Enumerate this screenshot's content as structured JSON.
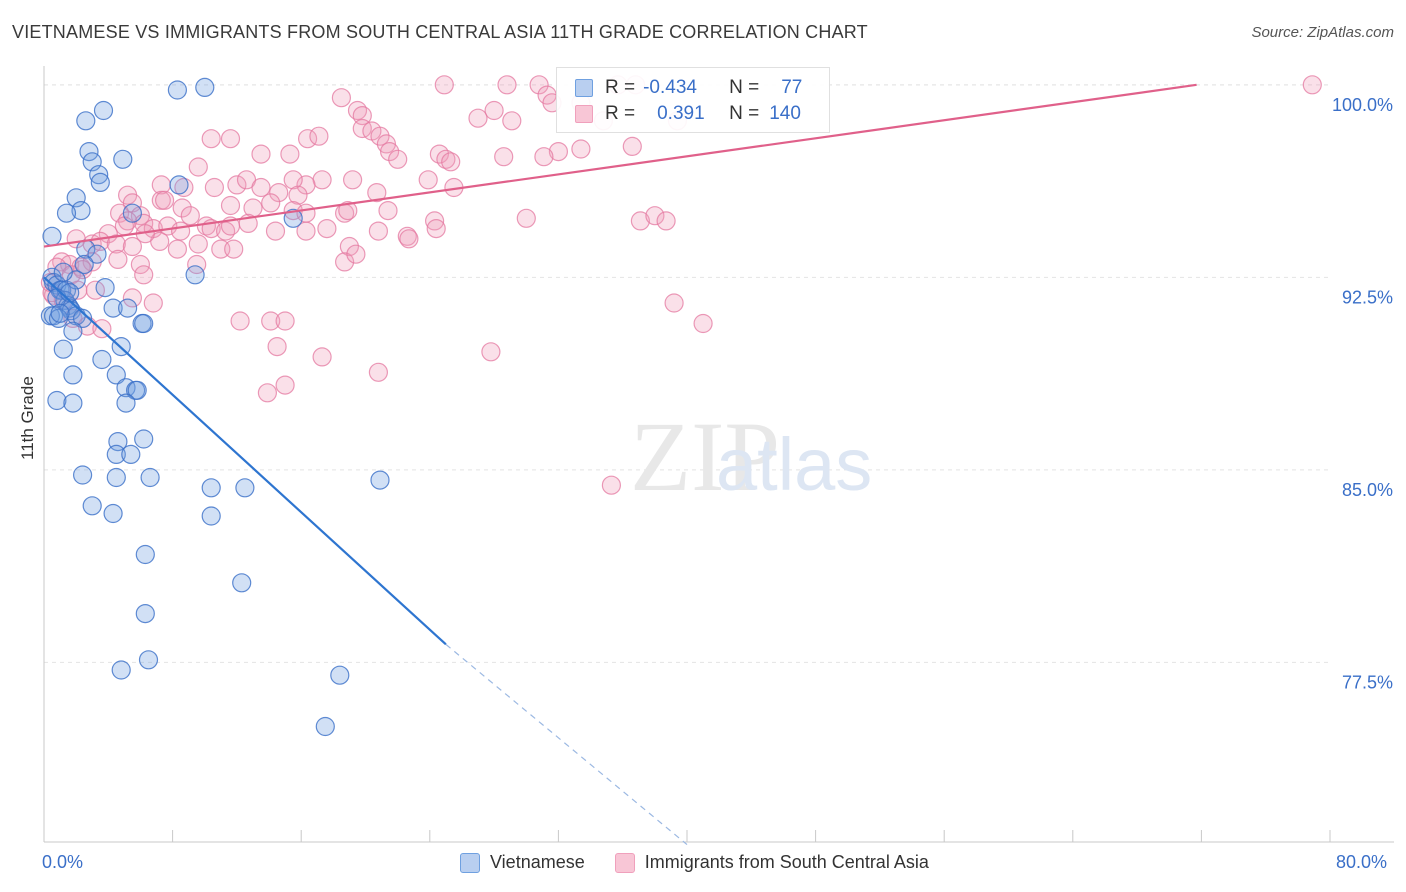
{
  "title": "VIETNAMESE VS IMMIGRANTS FROM SOUTH CENTRAL ASIA 11TH GRADE CORRELATION CHART",
  "source": "Source: ZipAtlas.com",
  "watermark": {
    "zip": "ZIP",
    "atlas": "atlas"
  },
  "legend": {
    "rows": [
      {
        "r_label": "R =",
        "r_value": "-0.434",
        "n_label": "N =",
        "n_value": "77"
      },
      {
        "r_label": "R =",
        "r_value": "0.391",
        "n_label": "N =",
        "n_value": "140"
      }
    ]
  },
  "bottom_legend": [
    "Vietnamese",
    "Immigrants from South Central Asia"
  ],
  "chart_data": {
    "type": "scatter",
    "title": "VIETNAMESE VS IMMIGRANTS FROM SOUTH CENTRAL ASIA 11TH GRADE CORRELATION CHART",
    "xlabel": "",
    "ylabel": "11th Grade",
    "xlim": [
      0,
      80
    ],
    "ylim": [
      70.5,
      100.5
    ],
    "x_tick_labels": [
      "0.0%",
      "80.0%"
    ],
    "y_ticks": [
      77.5,
      85.0,
      92.5,
      100.0
    ],
    "y_tick_labels": [
      "77.5%",
      "85.0%",
      "92.5%",
      "100.0%"
    ],
    "grid": true,
    "colors": {
      "vietnamese": "#6fa0e0",
      "south_central_asia": "#f0a0bc",
      "blue_line": "#2e75d0",
      "pink_line": "#e0608a"
    },
    "series": [
      {
        "name": "Vietnamese",
        "color": "#6fa0e0",
        "trend": {
          "x": [
            0,
            25,
            40
          ],
          "y": [
            92.5,
            78.2,
            70.4
          ]
        },
        "points": [
          [
            8.3,
            99.8
          ],
          [
            10.0,
            99.9
          ],
          [
            3.7,
            99.0
          ],
          [
            2.8,
            97.4
          ],
          [
            2.6,
            98.6
          ],
          [
            4.9,
            97.1
          ],
          [
            3.0,
            97.0
          ],
          [
            3.4,
            96.5
          ],
          [
            3.5,
            96.2
          ],
          [
            8.4,
            96.1
          ],
          [
            2.0,
            95.6
          ],
          [
            2.3,
            95.1
          ],
          [
            1.4,
            95.0
          ],
          [
            5.5,
            95.0
          ],
          [
            15.5,
            94.8
          ],
          [
            0.5,
            94.1
          ],
          [
            2.6,
            93.6
          ],
          [
            3.3,
            93.4
          ],
          [
            2.5,
            93.0
          ],
          [
            0.5,
            92.5
          ],
          [
            0.6,
            92.3
          ],
          [
            0.8,
            92.2
          ],
          [
            1.0,
            92.0
          ],
          [
            1.1,
            92.0
          ],
          [
            1.4,
            92.0
          ],
          [
            1.3,
            91.6
          ],
          [
            1.5,
            91.4
          ],
          [
            1.6,
            91.3
          ],
          [
            1.7,
            91.2
          ],
          [
            0.4,
            91.0
          ],
          [
            0.6,
            91.0
          ],
          [
            0.9,
            90.9
          ],
          [
            2.0,
            91.0
          ],
          [
            2.4,
            90.9
          ],
          [
            4.3,
            91.3
          ],
          [
            5.2,
            91.3
          ],
          [
            6.1,
            90.7
          ],
          [
            6.2,
            90.7
          ],
          [
            1.8,
            90.4
          ],
          [
            4.8,
            89.8
          ],
          [
            1.2,
            89.7
          ],
          [
            3.6,
            89.3
          ],
          [
            9.4,
            92.6
          ],
          [
            1.8,
            88.7
          ],
          [
            4.5,
            88.7
          ],
          [
            5.1,
            88.2
          ],
          [
            5.7,
            88.1
          ],
          [
            5.8,
            88.1
          ],
          [
            0.8,
            87.7
          ],
          [
            1.8,
            87.6
          ],
          [
            5.1,
            87.6
          ],
          [
            4.6,
            86.1
          ],
          [
            6.2,
            86.2
          ],
          [
            4.5,
            85.6
          ],
          [
            5.4,
            85.6
          ],
          [
            2.4,
            84.8
          ],
          [
            4.5,
            84.7
          ],
          [
            6.6,
            84.7
          ],
          [
            10.4,
            84.3
          ],
          [
            12.5,
            84.3
          ],
          [
            20.9,
            84.6
          ],
          [
            3.0,
            83.6
          ],
          [
            4.3,
            83.3
          ],
          [
            10.4,
            83.2
          ],
          [
            6.3,
            81.7
          ],
          [
            12.3,
            80.6
          ],
          [
            6.3,
            79.4
          ],
          [
            4.8,
            77.2
          ],
          [
            6.5,
            77.6
          ],
          [
            18.4,
            77.0
          ],
          [
            17.5,
            75.0
          ],
          [
            2.0,
            92.4
          ],
          [
            1.2,
            92.7
          ],
          [
            0.8,
            91.7
          ],
          [
            1.6,
            91.9
          ],
          [
            1.0,
            91.1
          ],
          [
            3.8,
            92.1
          ]
        ]
      },
      {
        "name": "Immigrants from South Central Asia",
        "color": "#f0a0bc",
        "trend": {
          "x": [
            0,
            71.7
          ],
          "y": [
            93.7,
            100.0
          ]
        },
        "points": [
          [
            24.9,
            100.0
          ],
          [
            28.8,
            100.0
          ],
          [
            30.8,
            100.0
          ],
          [
            31.3,
            99.6
          ],
          [
            31.6,
            99.3
          ],
          [
            33.4,
            99.3
          ],
          [
            35.7,
            100.0
          ],
          [
            36.8,
            100.0
          ],
          [
            78.9,
            100.0
          ],
          [
            18.5,
            99.5
          ],
          [
            19.5,
            99.0
          ],
          [
            19.8,
            98.8
          ],
          [
            27.0,
            98.7
          ],
          [
            28.0,
            99.0
          ],
          [
            29.1,
            98.6
          ],
          [
            34.8,
            98.6
          ],
          [
            39.4,
            98.6
          ],
          [
            19.8,
            98.3
          ],
          [
            20.4,
            98.2
          ],
          [
            20.9,
            98.0
          ],
          [
            16.4,
            97.9
          ],
          [
            17.1,
            98.0
          ],
          [
            21.3,
            97.7
          ],
          [
            21.5,
            97.4
          ],
          [
            11.6,
            97.9
          ],
          [
            10.4,
            97.9
          ],
          [
            32.0,
            97.4
          ],
          [
            33.4,
            97.5
          ],
          [
            13.5,
            97.3
          ],
          [
            15.3,
            97.3
          ],
          [
            22.0,
            97.1
          ],
          [
            24.6,
            97.3
          ],
          [
            25.0,
            97.1
          ],
          [
            25.3,
            97.0
          ],
          [
            28.6,
            97.2
          ],
          [
            36.6,
            97.6
          ],
          [
            9.6,
            96.8
          ],
          [
            17.3,
            96.3
          ],
          [
            16.3,
            96.1
          ],
          [
            19.2,
            96.3
          ],
          [
            23.9,
            96.3
          ],
          [
            12.0,
            96.1
          ],
          [
            12.6,
            96.3
          ],
          [
            15.5,
            96.3
          ],
          [
            7.3,
            96.1
          ],
          [
            8.7,
            96.0
          ],
          [
            10.6,
            96.0
          ],
          [
            13.5,
            96.0
          ],
          [
            14.6,
            95.8
          ],
          [
            15.8,
            95.7
          ],
          [
            20.7,
            95.8
          ],
          [
            25.5,
            96.0
          ],
          [
            31.1,
            97.2
          ],
          [
            5.2,
            95.7
          ],
          [
            5.5,
            95.4
          ],
          [
            11.6,
            95.3
          ],
          [
            13.0,
            95.2
          ],
          [
            14.1,
            95.4
          ],
          [
            15.5,
            95.1
          ],
          [
            7.3,
            95.5
          ],
          [
            8.6,
            95.2
          ],
          [
            9.1,
            94.9
          ],
          [
            6.0,
            94.9
          ],
          [
            16.3,
            95.0
          ],
          [
            18.7,
            95.0
          ],
          [
            18.9,
            95.1
          ],
          [
            21.4,
            95.1
          ],
          [
            4.7,
            95.0
          ],
          [
            5.2,
            94.7
          ],
          [
            4.0,
            94.2
          ],
          [
            5.0,
            94.5
          ],
          [
            6.2,
            94.6
          ],
          [
            6.8,
            94.4
          ],
          [
            7.7,
            94.5
          ],
          [
            8.5,
            94.3
          ],
          [
            10.1,
            94.5
          ],
          [
            10.4,
            94.4
          ],
          [
            11.3,
            94.3
          ],
          [
            11.6,
            94.5
          ],
          [
            12.7,
            94.6
          ],
          [
            14.4,
            94.3
          ],
          [
            16.3,
            94.3
          ],
          [
            17.6,
            94.4
          ],
          [
            20.8,
            94.3
          ],
          [
            22.6,
            94.1
          ],
          [
            24.3,
            94.7
          ],
          [
            30.0,
            94.8
          ],
          [
            37.1,
            94.7
          ],
          [
            38.0,
            94.9
          ],
          [
            38.7,
            94.7
          ],
          [
            2.0,
            94.0
          ],
          [
            3.0,
            93.8
          ],
          [
            3.5,
            93.9
          ],
          [
            4.5,
            93.8
          ],
          [
            5.5,
            93.7
          ],
          [
            7.2,
            93.9
          ],
          [
            8.3,
            93.6
          ],
          [
            9.6,
            93.8
          ],
          [
            11.0,
            93.6
          ],
          [
            11.8,
            93.6
          ],
          [
            19.0,
            93.7
          ],
          [
            22.7,
            94.0
          ],
          [
            24.4,
            94.4
          ],
          [
            1.1,
            93.1
          ],
          [
            1.6,
            93.0
          ],
          [
            2.3,
            92.9
          ],
          [
            3.0,
            93.1
          ],
          [
            4.6,
            93.2
          ],
          [
            6.0,
            93.0
          ],
          [
            9.5,
            93.0
          ],
          [
            18.7,
            93.1
          ],
          [
            0.8,
            92.9
          ],
          [
            1.7,
            92.6
          ],
          [
            2.4,
            92.8
          ],
          [
            6.2,
            92.6
          ],
          [
            2.1,
            92.0
          ],
          [
            3.2,
            92.0
          ],
          [
            0.6,
            91.8
          ],
          [
            1.2,
            91.6
          ],
          [
            5.5,
            91.7
          ],
          [
            6.8,
            91.5
          ],
          [
            39.2,
            91.5
          ],
          [
            1.8,
            90.9
          ],
          [
            2.7,
            90.6
          ],
          [
            3.6,
            90.5
          ],
          [
            12.2,
            90.8
          ],
          [
            14.1,
            90.8
          ],
          [
            15.0,
            90.8
          ],
          [
            41.0,
            90.7
          ],
          [
            14.5,
            89.8
          ],
          [
            17.3,
            89.4
          ],
          [
            27.8,
            89.6
          ],
          [
            20.8,
            88.8
          ],
          [
            13.9,
            88.0
          ],
          [
            15.0,
            88.3
          ],
          [
            35.3,
            84.4
          ],
          [
            0.5,
            91.9
          ],
          [
            0.4,
            92.3
          ],
          [
            6.3,
            94.2
          ],
          [
            7.5,
            95.5
          ],
          [
            19.4,
            93.4
          ]
        ]
      }
    ]
  }
}
